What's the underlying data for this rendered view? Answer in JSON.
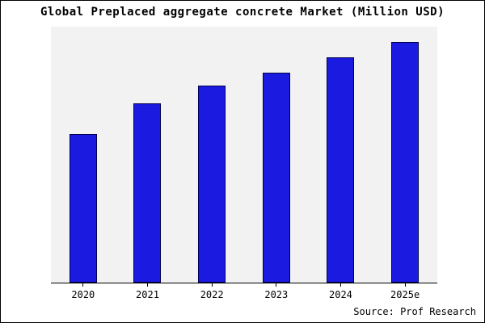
{
  "chart_data": {
    "type": "bar",
    "title": "Global Preplaced aggregate concrete Market (Million USD)",
    "categories": [
      "2020",
      "2021",
      "2022",
      "2023",
      "2024",
      "2025e"
    ],
    "values": [
      58,
      70,
      77,
      82,
      88,
      94
    ],
    "xlabel": "",
    "ylabel": "",
    "ylim": [
      0,
      100
    ],
    "grid": false,
    "legend": "none",
    "bar_fill": "#1a1ae0",
    "bar_border": "#00004d",
    "plot_background": "#f2f2f2"
  },
  "source": "Source: Prof Research"
}
